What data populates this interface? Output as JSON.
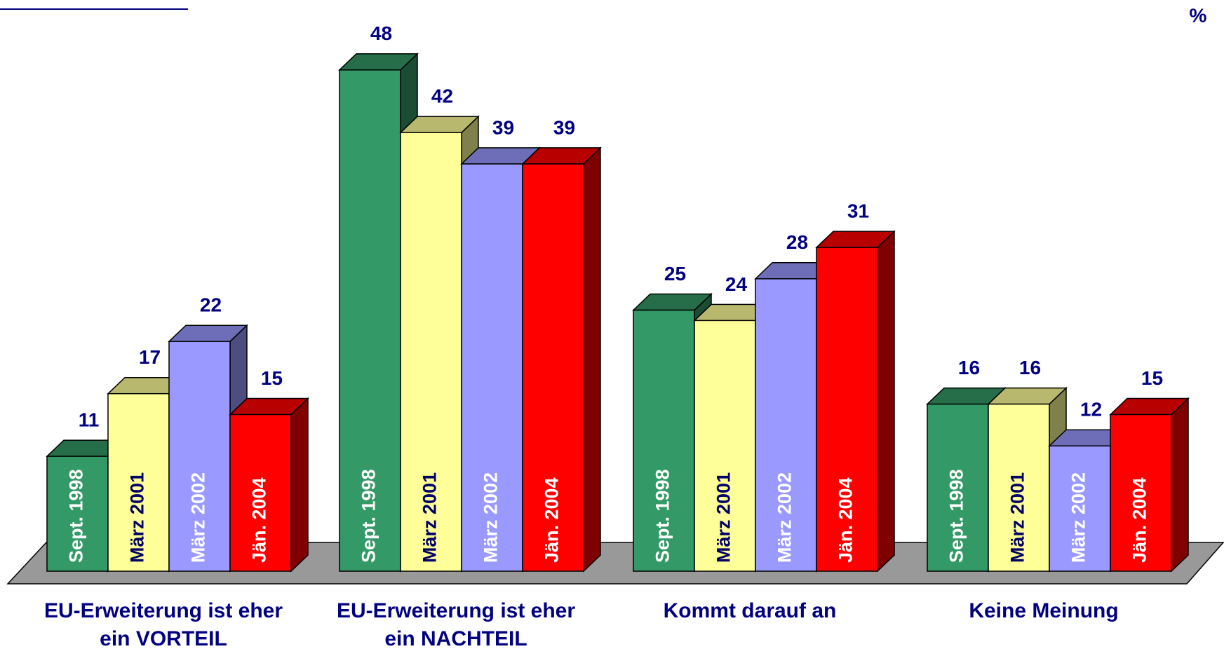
{
  "chart_data": {
    "type": "bar3d",
    "unit": "%",
    "categories": [
      "EU-Erweiterung ist eher ein VORTEIL",
      "EU-Erweiterung ist eher ein NACHTEIL",
      "Kommt darauf an",
      "Keine Meinung"
    ],
    "series": [
      {
        "name": "Sept. 1998",
        "color": "#339966",
        "text_color": "#ffffff",
        "values": [
          11,
          48,
          25,
          16
        ]
      },
      {
        "name": "März 2001",
        "color": "#ffff99",
        "text_color": "#000066",
        "values": [
          17,
          42,
          24,
          16
        ]
      },
      {
        "name": "März 2002",
        "color": "#9999ff",
        "text_color": "#ffffff",
        "values": [
          22,
          39,
          28,
          12
        ]
      },
      {
        "name": "Jän. 2004",
        "color": "#ff0000",
        "text_color": "#ffffff",
        "values": [
          15,
          39,
          31,
          15
        ]
      }
    ]
  }
}
